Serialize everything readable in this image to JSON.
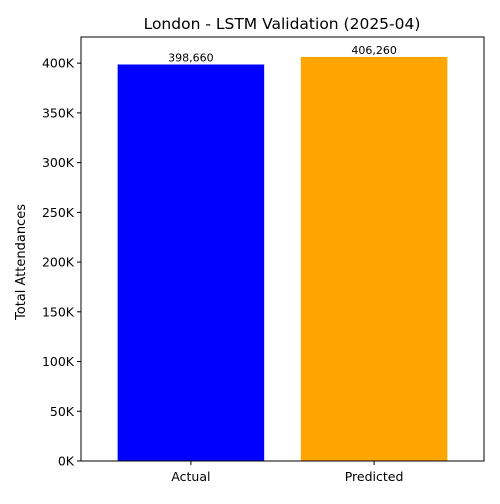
{
  "chart_data": {
    "type": "bar",
    "title": "London - LSTM Validation (2025-04)",
    "xlabel": "",
    "ylabel": "Total Attendances",
    "categories": [
      "Actual",
      "Predicted"
    ],
    "values": [
      398660,
      406260
    ],
    "value_labels": [
      "398,660",
      "406,260"
    ],
    "bar_colors": [
      "#0000ff",
      "#ffa500"
    ],
    "ylim": [
      0,
      426292
    ],
    "yticks": [
      0,
      50000,
      100000,
      150000,
      200000,
      250000,
      300000,
      350000,
      400000
    ],
    "ytick_labels": [
      "0K",
      "50K",
      "100K",
      "150K",
      "200K",
      "250K",
      "300K",
      "350K",
      "400K"
    ],
    "grid": false,
    "legend": null
  }
}
